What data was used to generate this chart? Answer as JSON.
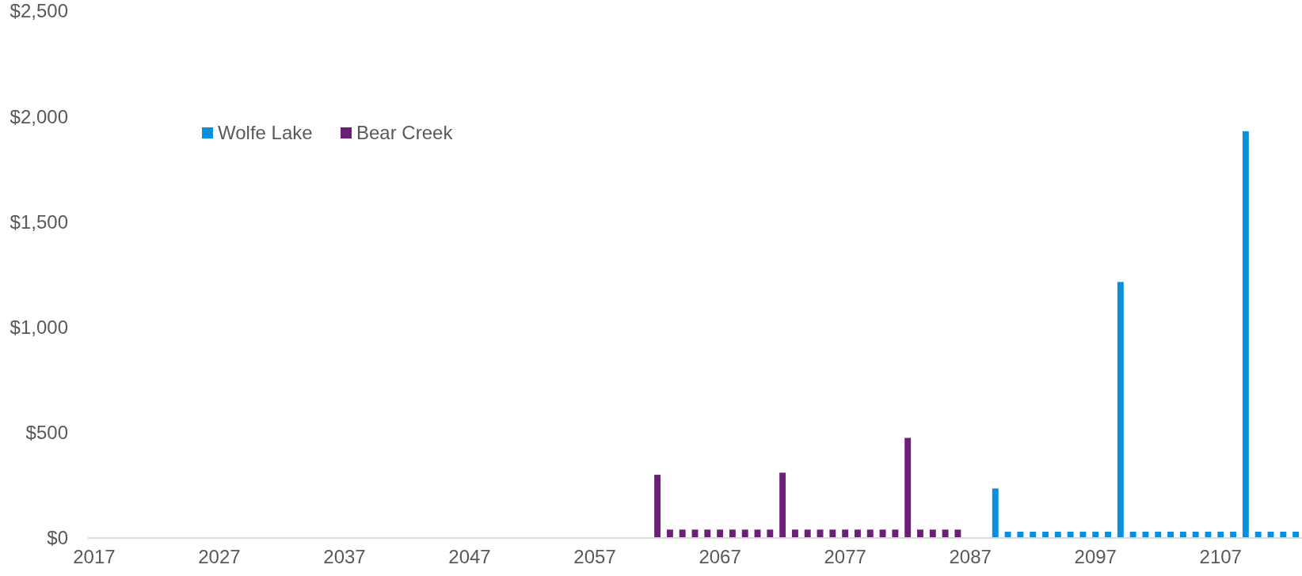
{
  "chart_data": {
    "type": "bar",
    "categories": [
      "2017",
      null,
      null,
      null,
      null,
      null,
      null,
      null,
      null,
      null,
      "2027",
      null,
      null,
      null,
      null,
      null,
      null,
      null,
      null,
      null,
      "2037",
      null,
      null,
      null,
      null,
      null,
      null,
      null,
      null,
      null,
      "2047",
      null,
      null,
      null,
      null,
      null,
      null,
      null,
      null,
      null,
      "2057",
      null,
      null,
      null,
      null,
      null,
      null,
      null,
      null,
      null,
      "2067",
      null,
      null,
      null,
      null,
      null,
      null,
      null,
      null,
      null,
      "2077",
      null,
      null,
      null,
      null,
      null,
      null,
      null,
      null,
      null,
      "2087",
      null,
      null,
      null,
      null,
      null,
      null,
      null,
      null,
      null,
      "2097",
      null,
      null,
      null,
      null,
      null,
      null,
      null,
      null,
      null,
      "2107",
      null,
      null,
      null,
      null,
      null,
      null
    ],
    "series": [
      {
        "name": "Wolfe Lake",
        "color": "#0a90da",
        "values": [
          null,
          null,
          null,
          null,
          null,
          null,
          null,
          null,
          null,
          null,
          null,
          null,
          null,
          null,
          null,
          null,
          null,
          null,
          null,
          null,
          null,
          null,
          null,
          null,
          null,
          null,
          null,
          null,
          null,
          null,
          null,
          null,
          null,
          null,
          null,
          null,
          null,
          null,
          null,
          null,
          null,
          null,
          null,
          null,
          null,
          null,
          null,
          null,
          null,
          null,
          null,
          null,
          null,
          null,
          null,
          null,
          null,
          null,
          null,
          null,
          null,
          null,
          null,
          null,
          null,
          null,
          null,
          null,
          null,
          null,
          null,
          null,
          235,
          30,
          30,
          30,
          30,
          30,
          30,
          30,
          30,
          30,
          1215,
          30,
          30,
          30,
          30,
          30,
          30,
          30,
          30,
          30,
          1930,
          30,
          30,
          30,
          30
        ]
      },
      {
        "name": "Bear Creek",
        "color": "#6b1f77",
        "values": [
          null,
          null,
          null,
          null,
          null,
          null,
          null,
          null,
          null,
          null,
          null,
          null,
          null,
          null,
          null,
          null,
          null,
          null,
          null,
          null,
          null,
          null,
          null,
          null,
          null,
          null,
          null,
          null,
          null,
          null,
          null,
          null,
          null,
          null,
          null,
          null,
          null,
          null,
          null,
          null,
          null,
          null,
          null,
          null,
          null,
          300,
          40,
          40,
          40,
          40,
          40,
          40,
          40,
          40,
          40,
          310,
          40,
          40,
          40,
          40,
          40,
          40,
          40,
          40,
          40,
          475,
          40,
          40,
          40,
          40,
          null,
          null,
          null,
          null,
          null,
          null,
          null,
          null,
          null,
          null,
          null,
          null,
          null,
          null,
          null,
          null,
          null,
          null,
          null,
          null,
          null,
          null,
          null,
          null,
          null,
          null,
          null
        ]
      }
    ],
    "ylim": [
      0,
      2500
    ],
    "yticks": [
      {
        "value": 0,
        "label": "$0"
      },
      {
        "value": 500,
        "label": "$500"
      },
      {
        "value": 1000,
        "label": "$1,000"
      },
      {
        "value": 1500,
        "label": "$1,500"
      },
      {
        "value": 2000,
        "label": "$2,000"
      },
      {
        "value": 2500,
        "label": "$2,500"
      }
    ],
    "grid": false,
    "legend": "top left"
  }
}
